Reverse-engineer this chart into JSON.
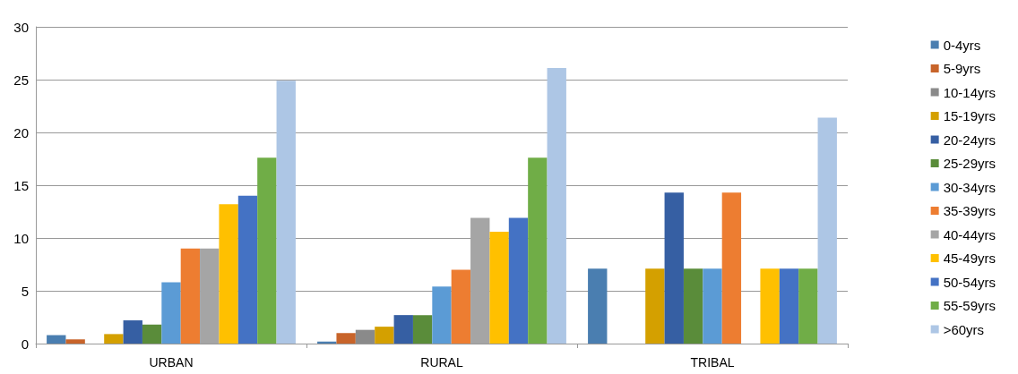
{
  "chart_data": {
    "type": "bar",
    "categories": [
      "URBAN",
      "RURAL",
      "TRIBAL"
    ],
    "series": [
      {
        "name": "0-4yrs",
        "color": "#4a7eb0",
        "values": [
          0.8,
          0.2,
          7.1
        ]
      },
      {
        "name": "5-9yrs",
        "color": "#c8642a",
        "values": [
          0.4,
          1.0,
          0
        ]
      },
      {
        "name": "10-14yrs",
        "color": "#8a8a8a",
        "values": [
          0,
          1.3,
          0
        ]
      },
      {
        "name": "15-19yrs",
        "color": "#d4a000",
        "values": [
          0.9,
          1.6,
          7.1
        ]
      },
      {
        "name": "20-24yrs",
        "color": "#365fa3",
        "values": [
          2.2,
          2.7,
          14.3
        ]
      },
      {
        "name": "25-29yrs",
        "color": "#5a8c3a",
        "values": [
          1.8,
          2.7,
          7.1
        ]
      },
      {
        "name": "30-34yrs",
        "color": "#5b9bd5",
        "values": [
          5.8,
          5.4,
          7.1
        ]
      },
      {
        "name": "35-39yrs",
        "color": "#ed7d31",
        "values": [
          9.0,
          7.0,
          14.3
        ]
      },
      {
        "name": "40-44yrs",
        "color": "#a5a5a5",
        "values": [
          9.0,
          11.9,
          0
        ]
      },
      {
        "name": "45-49yrs",
        "color": "#ffc000",
        "values": [
          13.2,
          10.6,
          7.1
        ]
      },
      {
        "name": "50-54yrs",
        "color": "#4472c4",
        "values": [
          14.0,
          11.9,
          7.1
        ]
      },
      {
        "name": "55-59yrs",
        "color": "#70ad47",
        "values": [
          17.6,
          17.6,
          7.1
        ]
      },
      {
        "name": ">60yrs",
        "color": "#adc6e5",
        "values": [
          24.9,
          26.1,
          21.4
        ]
      }
    ],
    "ylim": [
      0,
      30
    ],
    "yticks": [
      0,
      5,
      10,
      15,
      20,
      25,
      30
    ],
    "grid": "y",
    "legend": "right"
  }
}
